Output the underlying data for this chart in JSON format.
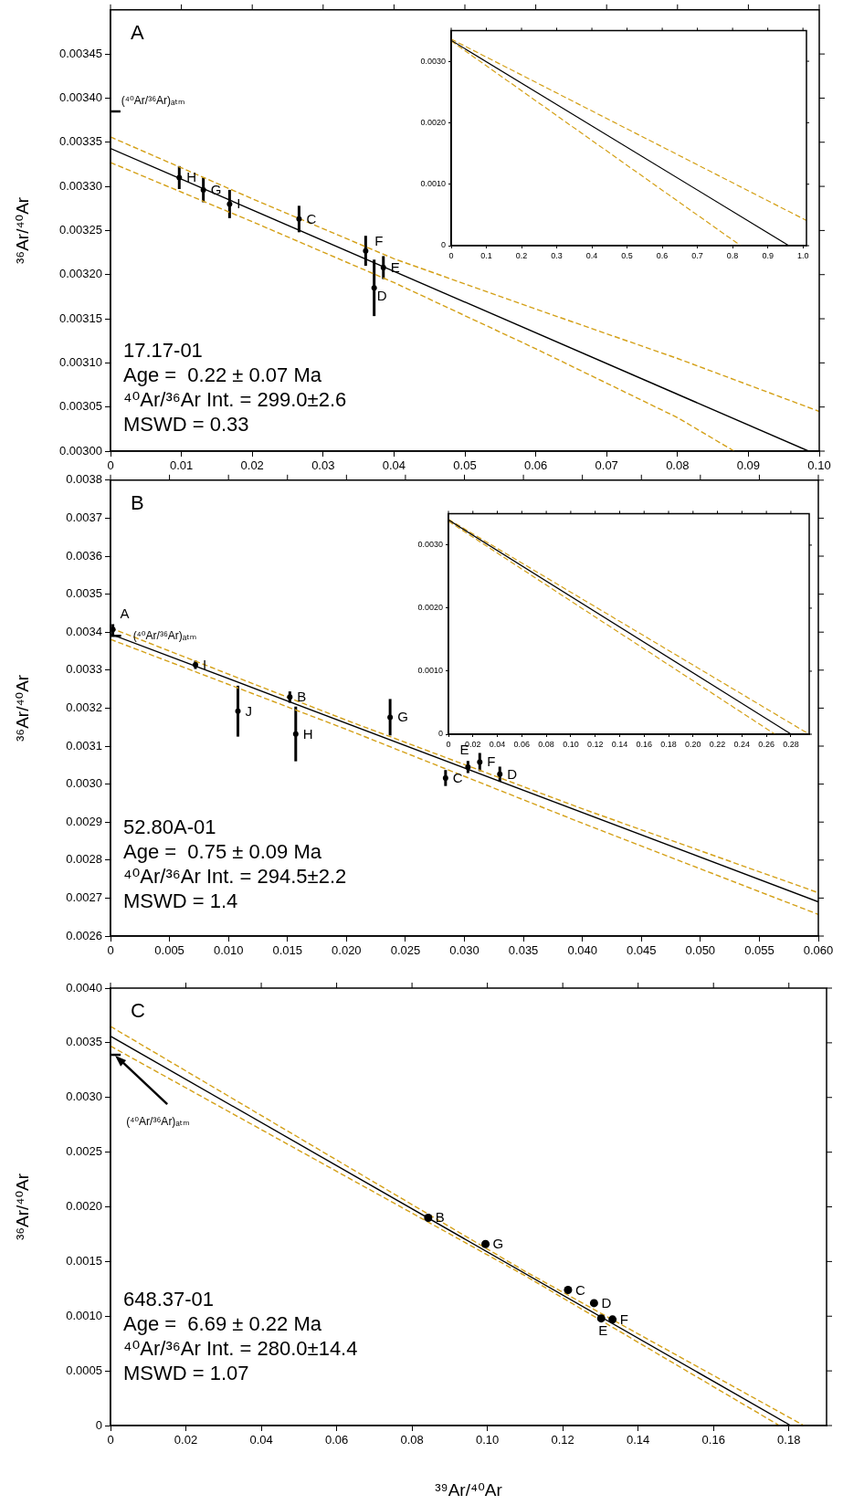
{
  "chart_data": [
    {
      "type": "scatter",
      "title": "A",
      "ylabel": "³⁶Ar/⁴⁰Ar",
      "xlim": [
        0,
        0.1
      ],
      "xticks": [
        0,
        0.01,
        0.02,
        0.03,
        0.04,
        0.05,
        0.06,
        0.07,
        0.08,
        0.09,
        {
          "value": 0.1,
          "label": "0.10"
        }
      ],
      "ylim": [
        0.003,
        0.0035
      ],
      "yticks": [
        {
          "value": 0.003,
          "label": "0.00300"
        },
        0.00305,
        {
          "value": 0.0031,
          "label": "0.00310"
        },
        0.00315,
        {
          "value": 0.0032,
          "label": "0.00320"
        },
        0.00325,
        {
          "value": 0.0033,
          "label": "0.00330"
        },
        0.00335,
        {
          "value": 0.0034,
          "label": "0.00340"
        },
        0.00345
      ],
      "series": [
        {
          "type": "scatter",
          "color": "#000000",
          "marker": "circle",
          "x": [
            0.0097,
            0.0131,
            0.0168,
            0.0266,
            0.036,
            0.0372,
            0.0385
          ],
          "values": [
            0.00331,
            0.003296,
            0.00328,
            0.003263,
            0.003227,
            0.003185,
            0.003208
          ],
          "errors": [
            1.3e-05,
            1.4e-05,
            1.6e-05,
            1.5e-05,
            1.7e-05,
            3.2e-05,
            1.3e-05
          ]
        },
        {
          "type": "line",
          "color": "#000000",
          "x": [
            0,
            0.0985
          ],
          "values": [
            0.003343,
            0.003
          ]
        },
        {
          "type": "line",
          "color": "#d4a017",
          "line_style": "dashed",
          "x": [
            0,
            0.02,
            0.04,
            0.06,
            0.08,
            0.1
          ],
          "values": [
            0.003356,
            0.003286,
            0.003218,
            0.003161,
            0.003105,
            0.003045
          ]
        },
        {
          "type": "line",
          "color": "#d4a017",
          "line_style": "dashed",
          "x": [
            0,
            0.02,
            0.04,
            0.06,
            0.08,
            0.088
          ],
          "values": [
            0.003327,
            0.00326,
            0.003191,
            0.003116,
            0.003038,
            0.003
          ]
        },
        {
          "type": "line",
          "name": "(⁴⁰Ar/³⁶Ar)ₐₜₘ",
          "color": "#000000",
          "x": [
            0,
            0.0014
          ],
          "values": [
            0.003385,
            0.003385
          ]
        }
      ],
      "annotations": [
        {
          "text": "H",
          "x": 0.0097,
          "y": 0.00331
        },
        {
          "text": "G",
          "x": 0.0131,
          "y": 0.003296
        },
        {
          "text": "I",
          "x": 0.0168,
          "y": 0.00328
        },
        {
          "text": "C",
          "x": 0.0266,
          "y": 0.003263
        },
        {
          "text": "F",
          "x": 0.036,
          "y": 0.003227
        },
        {
          "text": "D",
          "x": 0.0372,
          "y": 0.003185
        },
        {
          "text": "E",
          "x": 0.0385,
          "y": 0.003208
        },
        "17.17-01",
        "Age =  0.22 ± 0.07 Ma",
        "⁴⁰Ar/³⁶Ar Int. = 299.0±2.6",
        "MSWD = 0.33"
      ]
    },
    {
      "type": "scatter",
      "xlim": [
        0,
        1.01
      ],
      "xticks": [
        0,
        0.1,
        0.2,
        0.3,
        0.4,
        0.5,
        0.6,
        0.7,
        0.8,
        0.9,
        {
          "value": 1,
          "label": "1.0"
        }
      ],
      "ylim": [
        0,
        0.0035
      ],
      "yticks": [
        0,
        {
          "value": 0.001,
          "label": "0.0010"
        },
        {
          "value": 0.002,
          "label": "0.0020"
        },
        {
          "value": 0.003,
          "label": "0.0030"
        }
      ],
      "series": [
        {
          "type": "line",
          "color": "#000000",
          "x": [
            0,
            0.96
          ],
          "values": [
            0.00334,
            0
          ]
        },
        {
          "type": "line",
          "color": "#d4a017",
          "line_style": "dashed",
          "x": [
            0,
            1.01
          ],
          "values": [
            0.00336,
            0.00041
          ]
        },
        {
          "type": "line",
          "color": "#d4a017",
          "line_style": "dashed",
          "x": [
            0,
            0.823
          ],
          "values": [
            0.00333,
            0
          ]
        }
      ]
    },
    {
      "type": "scatter",
      "title": "B",
      "ylabel": "³⁶Ar/⁴⁰Ar",
      "xlim": [
        0,
        0.06
      ],
      "xticks": [
        0,
        0.005,
        {
          "value": 0.01,
          "label": "0.010"
        },
        0.015,
        {
          "value": 0.02,
          "label": "0.020"
        },
        0.025,
        {
          "value": 0.03,
          "label": "0.030"
        },
        0.035,
        {
          "value": 0.04,
          "label": "0.040"
        },
        0.045,
        {
          "value": 0.05,
          "label": "0.050"
        },
        0.055,
        {
          "value": 0.06,
          "label": "0.060"
        }
      ],
      "ylim": [
        0.0026,
        0.0038
      ],
      "yticks": [
        0.0026,
        0.0027,
        0.0028,
        0.0029,
        {
          "value": 0.003,
          "label": "0.0030"
        },
        0.0031,
        0.0032,
        0.0033,
        0.0034,
        0.0035,
        0.0036,
        0.0037,
        0.0038
      ],
      "series": [
        {
          "type": "scatter",
          "color": "#000000",
          "marker": "circle",
          "x": [
            0.0002,
            0.0072,
            0.0108,
            0.0152,
            0.0157,
            0.0237,
            0.0303,
            0.0313,
            0.0284,
            0.033
          ],
          "values": [
            0.003407,
            0.003314,
            0.003192,
            0.003229,
            0.003132,
            0.003176,
            0.003045,
            0.003058,
            0.003016,
            0.003026
          ],
          "errors": [
            1.4e-05,
            1.1e-05,
            6.7e-05,
            1.5e-05,
            7.2e-05,
            4.8e-05,
            1.6e-05,
            2.4e-05,
            2.1e-05,
            2e-05
          ]
        },
        {
          "type": "line",
          "color": "#000000",
          "x": [
            0,
            0.06
          ],
          "values": [
            0.003395,
            0.00269
          ]
        },
        {
          "type": "line",
          "color": "#d4a017",
          "line_style": "dashed",
          "x": [
            0,
            0.02,
            0.04,
            0.06
          ],
          "values": [
            0.003411,
            0.003168,
            0.002935,
            0.002714
          ]
        },
        {
          "type": "line",
          "color": "#d4a017",
          "line_style": "dashed",
          "x": [
            0,
            0.02,
            0.04,
            0.06
          ],
          "values": [
            0.003381,
            0.003144,
            0.002897,
            0.002657
          ]
        },
        {
          "type": "line",
          "name": "(⁴⁰Ar/³⁶Ar)ₐₜₘ",
          "color": "#000000",
          "x": [
            0,
            0.0009
          ],
          "values": [
            0.00339,
            0.00339
          ]
        }
      ],
      "annotations": [
        {
          "text": "A",
          "x": 0.0002,
          "y": 0.003407
        },
        {
          "text": "I",
          "x": 0.0072,
          "y": 0.003314
        },
        {
          "text": "J",
          "x": 0.0108,
          "y": 0.003192
        },
        {
          "text": "B",
          "x": 0.0152,
          "y": 0.003229
        },
        {
          "text": "H",
          "x": 0.0157,
          "y": 0.003132
        },
        {
          "text": "G",
          "x": 0.0237,
          "y": 0.003176
        },
        {
          "text": "E",
          "x": 0.0303,
          "y": 0.003045
        },
        {
          "text": "F",
          "x": 0.0313,
          "y": 0.003058
        },
        {
          "text": "C",
          "x": 0.0284,
          "y": 0.003016
        },
        {
          "text": "D",
          "x": 0.033,
          "y": 0.003026
        },
        "52.80A-01",
        "Age =  0.75 ± 0.09 Ma",
        "⁴⁰Ar/³⁶Ar Int. = 294.5±2.2",
        "MSWD = 1.4"
      ]
    },
    {
      "type": "scatter",
      "xlim": [
        0,
        0.295
      ],
      "xticks": [
        0,
        0.02,
        0.04,
        0.06,
        0.08,
        {
          "value": 0.1,
          "label": "0.10"
        },
        0.12,
        0.14,
        0.16,
        0.18,
        {
          "value": 0.2,
          "label": "0.20"
        },
        0.22,
        0.24,
        0.26,
        0.28
      ],
      "ylim": [
        0,
        0.0035
      ],
      "yticks": [
        0,
        {
          "value": 0.001,
          "label": "0.0010"
        },
        {
          "value": 0.002,
          "label": "0.0020"
        },
        {
          "value": 0.003,
          "label": "0.0030"
        }
      ],
      "series": [
        {
          "type": "line",
          "color": "#000000",
          "x": [
            0,
            0.2803
          ],
          "values": [
            0.0034,
            0
          ]
        },
        {
          "type": "line",
          "color": "#d4a017",
          "line_style": "dashed",
          "x": [
            0,
            0.295
          ],
          "values": [
            0.00341,
            0
          ]
        },
        {
          "type": "line",
          "color": "#d4a017",
          "line_style": "dashed",
          "x": [
            0,
            0.267
          ],
          "values": [
            0.00338,
            0
          ]
        }
      ]
    },
    {
      "type": "scatter",
      "title": "C",
      "xlabel": "³⁹Ar/⁴⁰Ar",
      "ylabel": "³⁶Ar/⁴⁰Ar",
      "xlim": [
        0,
        0.19
      ],
      "xticks": [
        0,
        0.02,
        0.04,
        0.06,
        0.08,
        {
          "value": 0.1,
          "label": "0.10"
        },
        0.12,
        0.14,
        0.16,
        0.18
      ],
      "ylim": [
        0,
        0.004
      ],
      "yticks": [
        0,
        0.0005,
        {
          "value": 0.001,
          "label": "0.0010"
        },
        0.0015,
        {
          "value": 0.002,
          "label": "0.0020"
        },
        0.0025,
        {
          "value": 0.003,
          "label": "0.0030"
        },
        0.0035,
        {
          "value": 0.004,
          "label": "0.0040"
        }
      ],
      "series": [
        {
          "type": "scatter",
          "color": "#000000",
          "marker": "circle",
          "x": [
            0.0843,
            0.0995,
            0.1214,
            0.1283,
            0.1302,
            0.1332
          ],
          "values": [
            0.0019,
            0.00166,
            0.00124,
            0.00112,
            0.00098,
            0.00097
          ]
        },
        {
          "type": "line",
          "color": "#000000",
          "x": [
            0,
            0.1805
          ],
          "values": [
            0.00356,
            0
          ]
        },
        {
          "type": "line",
          "color": "#d4a017",
          "line_style": "dashed",
          "x": [
            0,
            0.11,
            0.184
          ],
          "values": [
            0.00365,
            0.00141,
            0
          ]
        },
        {
          "type": "line",
          "color": "#d4a017",
          "line_style": "dashed",
          "x": [
            0,
            0.11,
            0.1775
          ],
          "values": [
            0.00347,
            0.00137,
            0
          ]
        },
        {
          "type": "line",
          "name": "(⁴⁰Ar/³⁶Ar)ₐₜₘ",
          "color": "#000000",
          "x": [
            0,
            0.0027
          ],
          "values": [
            0.00339,
            0.00339
          ]
        }
      ],
      "annotations": [
        {
          "text": "B",
          "x": 0.0843,
          "y": 0.0019
        },
        {
          "text": "G",
          "x": 0.0995,
          "y": 0.00166
        },
        {
          "text": "C",
          "x": 0.1214,
          "y": 0.00124
        },
        {
          "text": "D",
          "x": 0.1283,
          "y": 0.00112
        },
        {
          "text": "E",
          "x": 0.1302,
          "y": 0.00098
        },
        {
          "text": "F",
          "x": 0.1332,
          "y": 0.00097
        },
        "648.37-01",
        "Age =  6.69 ± 0.22 Ma",
        "⁴⁰Ar/³⁶Ar Int. = 280.0±14.4",
        "MSWD = 1.07"
      ]
    }
  ]
}
